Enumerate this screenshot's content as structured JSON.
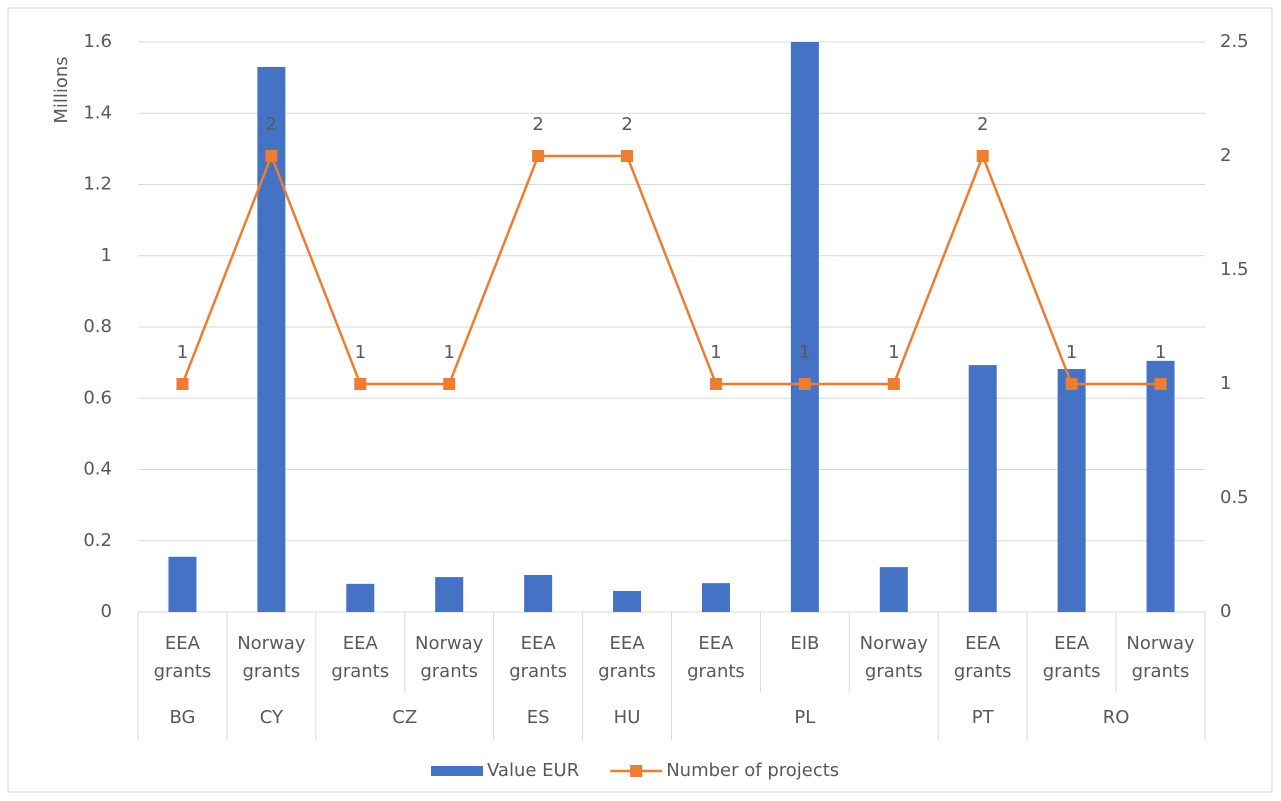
{
  "chart_data": {
    "type": "combo",
    "y_axis_label": "Millions",
    "categories": [
      "EEA grants",
      "Norway grants",
      "EEA grants",
      "Norway grants",
      "EEA grants",
      "EEA grants",
      "EEA grants",
      "EIB",
      "Norway grants",
      "EEA grants",
      "EEA grants",
      "Norway grants"
    ],
    "groups": [
      "BG",
      "CY",
      "CZ",
      null,
      "ES",
      "HU",
      "PL",
      null,
      null,
      "PT",
      "RO",
      null
    ],
    "series": [
      {
        "name": "Value EUR",
        "type": "bar",
        "color": "#4472c4",
        "values": [
          0.155,
          1.53,
          0.079,
          0.098,
          0.104,
          0.059,
          0.081,
          1.6,
          0.126,
          0.693,
          0.682,
          0.705
        ]
      },
      {
        "name": "Number of projects",
        "type": "line",
        "axis": "y2",
        "color": "#ed7d31",
        "data_labels": true,
        "values": [
          1,
          2,
          1,
          1,
          2,
          2,
          1,
          1,
          1,
          2,
          1,
          1
        ]
      }
    ],
    "ylim": [
      0,
      1.6
    ],
    "yticks": [
      0,
      0.2,
      0.4,
      0.6,
      0.8,
      1,
      1.2,
      1.4,
      1.6
    ],
    "y2lim": [
      0,
      2.5
    ],
    "y2ticks": [
      0,
      0.5,
      1,
      1.5,
      2,
      2.5
    ],
    "grid": true,
    "legend": "bottom"
  }
}
